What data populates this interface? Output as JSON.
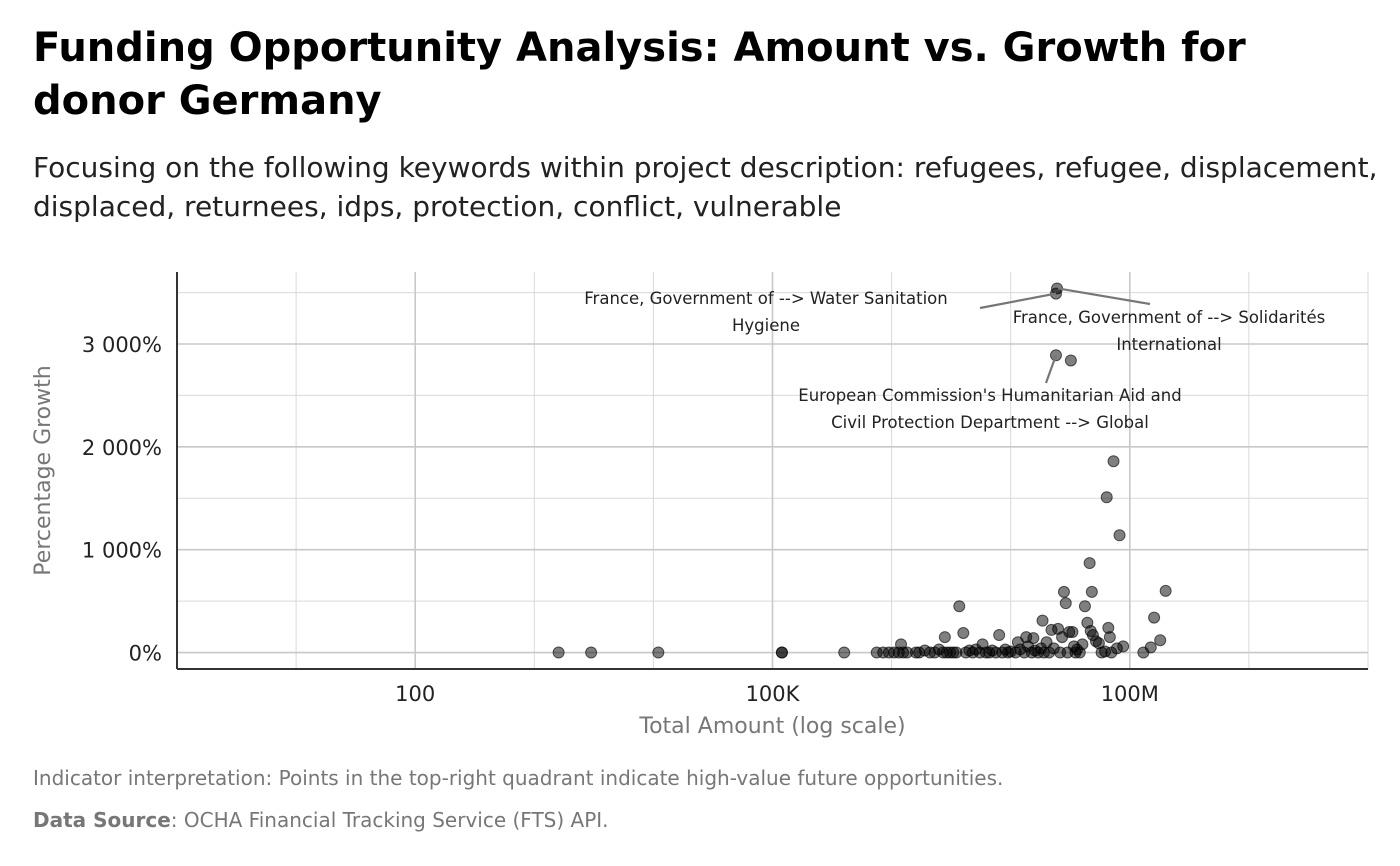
{
  "header": {
    "title": "Funding Opportunity Analysis: Amount vs. Growth for donor Germany",
    "subtitle": "Focusing on the following keywords within project description: refugees, refugee, displacement, displaced, returnees, idps, protection, conflict, vulnerable"
  },
  "footer": {
    "interpretation": "Indicator interpretation: Points in the top-right quadrant indicate high-value future opportunities.",
    "source_label": "Data Source",
    "source_text": ": OCHA Financial Tracking Service (FTS) API."
  },
  "chart_data": {
    "type": "scatter",
    "xlabel": "Total Amount (log scale)",
    "ylabel": "Percentage Growth",
    "x_scale": "log10",
    "xlim": [
      1,
      10000000000
    ],
    "ylim": [
      -160,
      3700
    ],
    "x_ticks": [
      {
        "value": 100,
        "label": "100"
      },
      {
        "value": 100000,
        "label": "100K"
      },
      {
        "value": 100000000,
        "label": "100M"
      }
    ],
    "y_ticks": [
      {
        "value": 0,
        "label": "0%"
      },
      {
        "value": 1000,
        "label": "1 000%"
      },
      {
        "value": 2000,
        "label": "2 000%"
      },
      {
        "value": 3000,
        "label": "3 000%"
      }
    ],
    "grid": true,
    "point_color": "#000000",
    "point_opacity": 0.5,
    "annotations": [
      {
        "text": [
          "France, Government of --> Water Sanitation",
          "Hygiene"
        ],
        "x": 24000000,
        "y": 3490
      },
      {
        "text": [
          "France, Government of --> Solidarités",
          "International"
        ],
        "x": 25000000,
        "y": 3540
      },
      {
        "text": [
          "European Commission's Humanitarian Aid and",
          "Civil Protection Department --> Global"
        ],
        "x": 24000000,
        "y": 2890
      }
    ],
    "points": [
      [
        1600,
        0
      ],
      [
        3000,
        0
      ],
      [
        11000,
        0
      ],
      [
        120000,
        0
      ],
      [
        120000,
        0
      ],
      [
        400000,
        0
      ],
      [
        750000,
        0
      ],
      [
        850000,
        0
      ],
      [
        950000,
        0
      ],
      [
        1050000,
        0
      ],
      [
        1150000,
        0
      ],
      [
        1250000,
        0
      ],
      [
        1350000,
        0
      ],
      [
        1200000,
        80
      ],
      [
        1600000,
        0
      ],
      [
        1700000,
        0
      ],
      [
        1900000,
        20
      ],
      [
        2100000,
        0
      ],
      [
        2300000,
        0
      ],
      [
        2500000,
        30
      ],
      [
        2700000,
        0
      ],
      [
        2900000,
        0
      ],
      [
        2800000,
        150
      ],
      [
        3100000,
        0
      ],
      [
        3300000,
        0
      ],
      [
        3500000,
        0
      ],
      [
        3700000,
        450
      ],
      [
        4000000,
        190
      ],
      [
        4200000,
        0
      ],
      [
        4500000,
        20
      ],
      [
        4800000,
        0
      ],
      [
        5100000,
        30
      ],
      [
        5500000,
        0
      ],
      [
        5800000,
        80
      ],
      [
        6200000,
        0
      ],
      [
        6600000,
        0
      ],
      [
        7000000,
        20
      ],
      [
        7500000,
        0
      ],
      [
        8000000,
        170
      ],
      [
        8500000,
        0
      ],
      [
        9000000,
        30
      ],
      [
        9500000,
        0
      ],
      [
        10000000,
        10
      ],
      [
        11000000,
        0
      ],
      [
        11500000,
        100
      ],
      [
        12000000,
        30
      ],
      [
        13000000,
        0
      ],
      [
        13500000,
        150
      ],
      [
        14000000,
        60
      ],
      [
        15000000,
        0
      ],
      [
        15500000,
        140
      ],
      [
        16000000,
        20
      ],
      [
        17000000,
        0
      ],
      [
        18000000,
        40
      ],
      [
        18500000,
        310
      ],
      [
        19000000,
        0
      ],
      [
        20000000,
        100
      ],
      [
        21000000,
        0
      ],
      [
        22000000,
        220
      ],
      [
        23000000,
        40
      ],
      [
        24000000,
        3490
      ],
      [
        24500000,
        3540
      ],
      [
        24000000,
        2890
      ],
      [
        25000000,
        230
      ],
      [
        26000000,
        0
      ],
      [
        27000000,
        150
      ],
      [
        28000000,
        590
      ],
      [
        29000000,
        480
      ],
      [
        30000000,
        0
      ],
      [
        31000000,
        200
      ],
      [
        32000000,
        2840
      ],
      [
        33000000,
        200
      ],
      [
        34000000,
        60
      ],
      [
        35000000,
        0
      ],
      [
        36000000,
        30
      ],
      [
        38000000,
        0
      ],
      [
        40000000,
        80
      ],
      [
        42000000,
        450
      ],
      [
        44000000,
        290
      ],
      [
        46000000,
        870
      ],
      [
        47000000,
        210
      ],
      [
        48000000,
        590
      ],
      [
        49000000,
        170
      ],
      [
        52000000,
        110
      ],
      [
        55000000,
        90
      ],
      [
        58000000,
        0
      ],
      [
        62000000,
        10
      ],
      [
        64000000,
        1510
      ],
      [
        66000000,
        240
      ],
      [
        68000000,
        150
      ],
      [
        70000000,
        0
      ],
      [
        73000000,
        1860
      ],
      [
        78000000,
        40
      ],
      [
        82000000,
        1140
      ],
      [
        88000000,
        60
      ],
      [
        130000000,
        0
      ],
      [
        150000000,
        50
      ],
      [
        160000000,
        340
      ],
      [
        180000000,
        120
      ],
      [
        200000000,
        600
      ]
    ]
  }
}
